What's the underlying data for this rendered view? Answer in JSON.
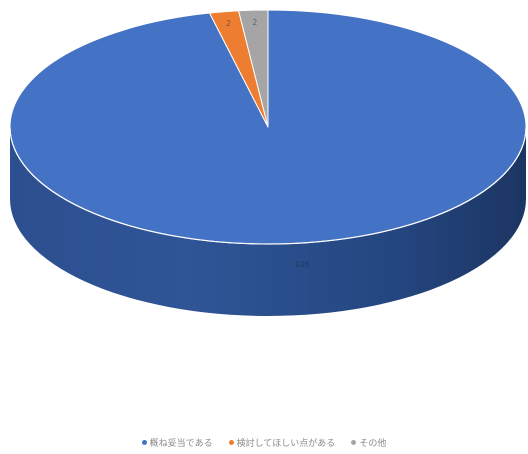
{
  "chart_data": {
    "type": "pie",
    "style": "3d",
    "categories": [
      "概ね妥当である",
      "検討してほしい点がある",
      "その他"
    ],
    "values": [
      106,
      2,
      2
    ],
    "data_labels": [
      "106",
      "2",
      "2"
    ],
    "colors": [
      "#4472c4",
      "#ed7d31",
      "#a5a5a5"
    ],
    "legend_position": "bottom",
    "start_angle_deg": 0,
    "title": "",
    "xlabel": "",
    "ylabel": ""
  }
}
